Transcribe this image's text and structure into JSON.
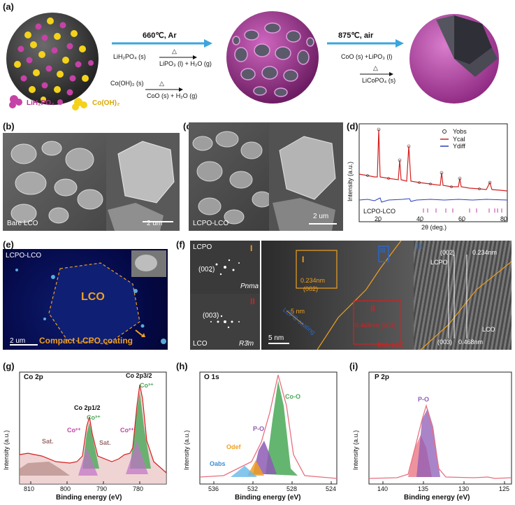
{
  "panels": {
    "a": "(a)",
    "b": "(b)",
    "c": "(c)",
    "d": "(d)",
    "e": "(e)",
    "f": "(f)",
    "g": "(g)",
    "h": "(h)",
    "i": "(i)"
  },
  "a": {
    "step1_condition": "660℃, Ar",
    "step2_condition": "875℃, air",
    "r1_left": "LiH₂PO₄ (s)",
    "r1_right": "LiPO₃ (l) + H₂O (g)",
    "r2_left": "Co(OH)₂ (s)",
    "r2_right": "CoO (s) + H₂O (g)",
    "r3_left": "CoO (s) +LiPO₃ (l)",
    "r3_right": "LiCoPO₄ (s)",
    "delta": "△",
    "legend_lih2po4": "LiH₂PO₄",
    "legend_coh2": "Co(OH)₂"
  },
  "b": {
    "label": "Bare LCO",
    "scale": "2 um"
  },
  "c": {
    "label": "LCPO-LCO",
    "scale": "2 um"
  },
  "d": {
    "legend": [
      "Yobs",
      "Ycal",
      "Ydiff"
    ],
    "ylabel": "Intensity (a.u.)",
    "xlabel": "2θ (deg.)",
    "ticks": [
      "20",
      "40",
      "60",
      "80"
    ],
    "phase": "LCPO-LCO"
  },
  "e": {
    "label": "LCPO-LCO",
    "core": "LCO",
    "coating": "Compact LCPO coating",
    "scale": "2 um"
  },
  "f": {
    "lcpo": "LCPO",
    "roman1": "I",
    "roman2": "II",
    "roman3": "III",
    "plane002": "(002)",
    "pnma": "Pnma",
    "plane003": "(003)",
    "lco": "LCO",
    "r3m": "R3̄m",
    "d1": "0.234nm",
    "d1_plane": "(002)",
    "thickness": "5 nm",
    "coat_label": "LCPO coating",
    "d2": "0.468nm (003)",
    "bulk": "Bulk LCO",
    "scale": "5 nm",
    "r_plane002": "(002)",
    "r_d1": "0.234nm",
    "r_lcpo": "LCPO",
    "r_lco": "LCO",
    "r_plane003": "(003)",
    "r_d2": "0.468nm"
  },
  "g": {
    "title": "Co 2p",
    "ylabel": "Intensity (a.u.)",
    "xlabel": "Binding energy (eV)",
    "ticks": [
      "810",
      "800",
      "790",
      "780"
    ],
    "co2p12": "Co 2p1/2",
    "co2p32": "Co 2p3/2",
    "co3a": "Co³⁺",
    "co3b": "Co³⁺",
    "co2a": "Co²⁺",
    "co2b": "Co²⁺",
    "sat1": "Sat.",
    "sat2": "Sat."
  },
  "h": {
    "title": "O 1s",
    "ylabel": "Intensity (a.u.)",
    "xlabel": "Binding energy (eV)",
    "ticks": [
      "536",
      "532",
      "528",
      "524"
    ],
    "coo": "Co-O",
    "po": "P-O",
    "odef": "Odef",
    "oabs": "Oabs"
  },
  "i": {
    "title": "P 2p",
    "ylabel": "Intensity (a.u.)",
    "xlabel": "Binding energy (eV)",
    "ticks": [
      "140",
      "135",
      "130",
      "125"
    ],
    "po": "P-O"
  },
  "colors": {
    "arrow": "#3aa6dd",
    "magenta": "#b6338f",
    "yellow": "#f4d21a",
    "orange": "#f0a020",
    "red": "#d42020",
    "green": "#49a857",
    "purple": "#8d5bb5",
    "pink": "#e86f7d",
    "blue": "#2c66c7"
  }
}
